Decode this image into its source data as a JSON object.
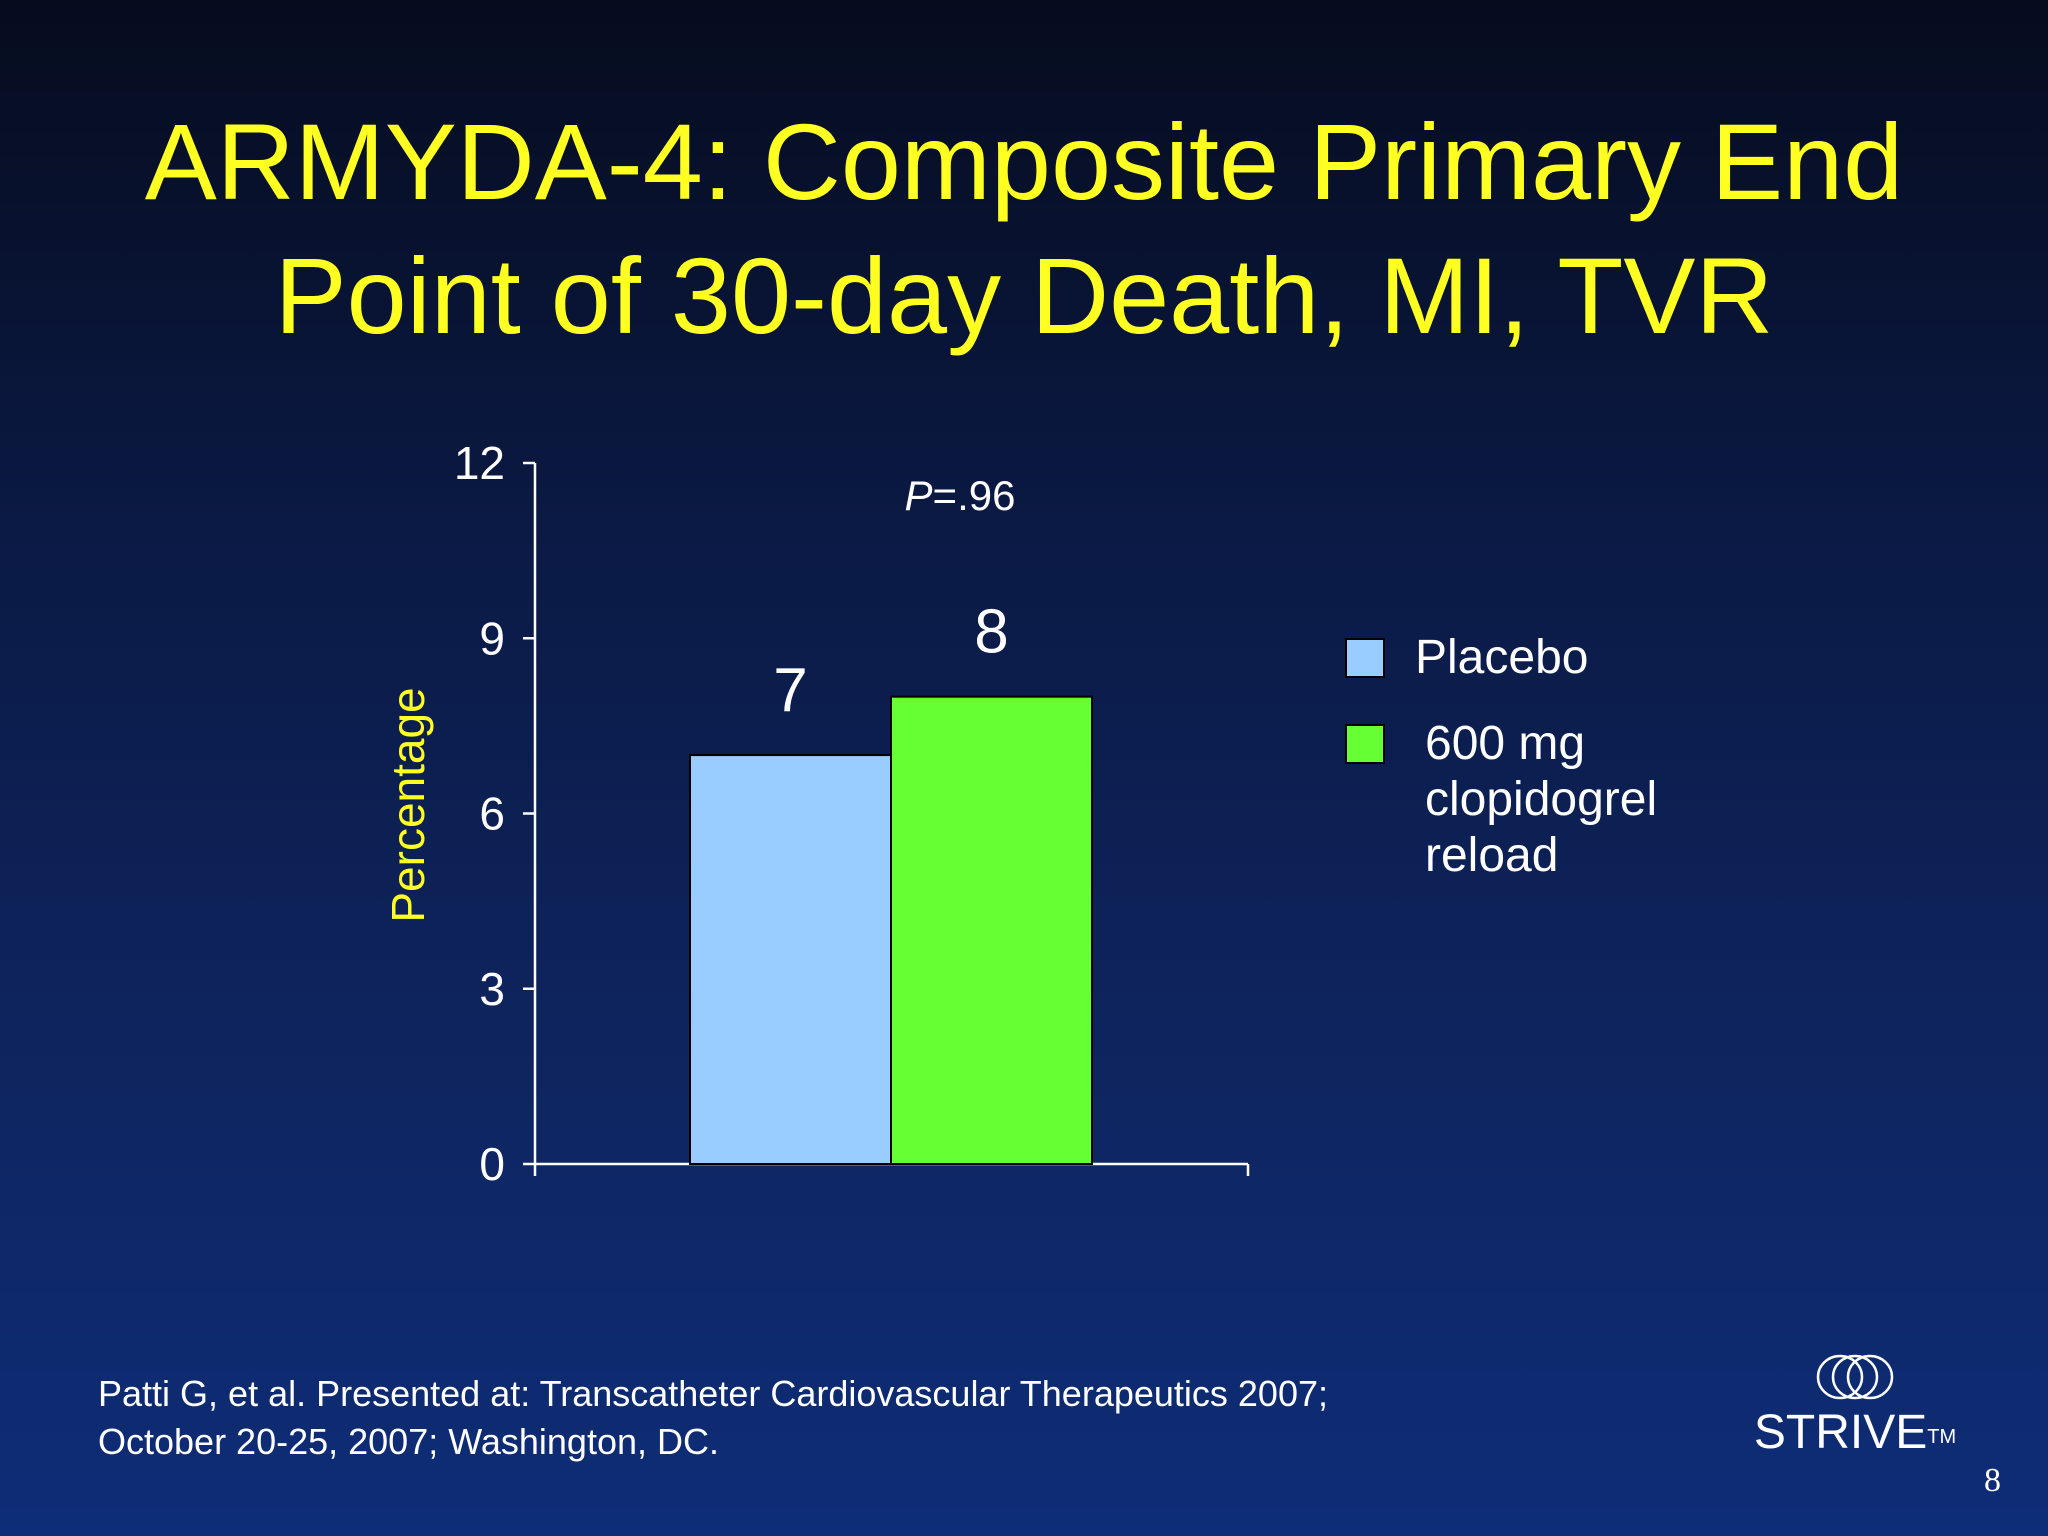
{
  "slide": {
    "title_lines": [
      "ARMYDA-4: Composite Primary End",
      "Point of 30-day Death, MI, TVR"
    ],
    "citation_lines": [
      "Patti G, et al. Presented at: Transcatheter Cardiovascular Therapeutics 2007;",
      "October 20-25, 2007; Washington, DC."
    ],
    "logo_text": "STRIVE",
    "logo_tm": "TM",
    "page_number": "8"
  },
  "colors": {
    "title": "#ffff22",
    "placebo": "#99ccff",
    "reload": "#66ff33"
  },
  "chart_data": {
    "type": "bar",
    "title": "",
    "xlabel": "",
    "ylabel": "Percentage",
    "ylim": [
      0,
      12
    ],
    "yticks": [
      0,
      3,
      6,
      9,
      12
    ],
    "series": [
      {
        "name": "Placebo",
        "legend_lines": [
          "Placebo"
        ],
        "values": [
          7
        ],
        "label": "7",
        "color": "#99ccff"
      },
      {
        "name": "600 mg clopidogrel reload",
        "legend_lines": [
          "600 mg",
          "clopidogrel",
          "reload"
        ],
        "values": [
          8
        ],
        "label": "8",
        "color": "#66ff33"
      }
    ],
    "annotation": {
      "p_italic": "P",
      "p_rest": "=.96"
    },
    "grid": false,
    "legend": "right"
  }
}
